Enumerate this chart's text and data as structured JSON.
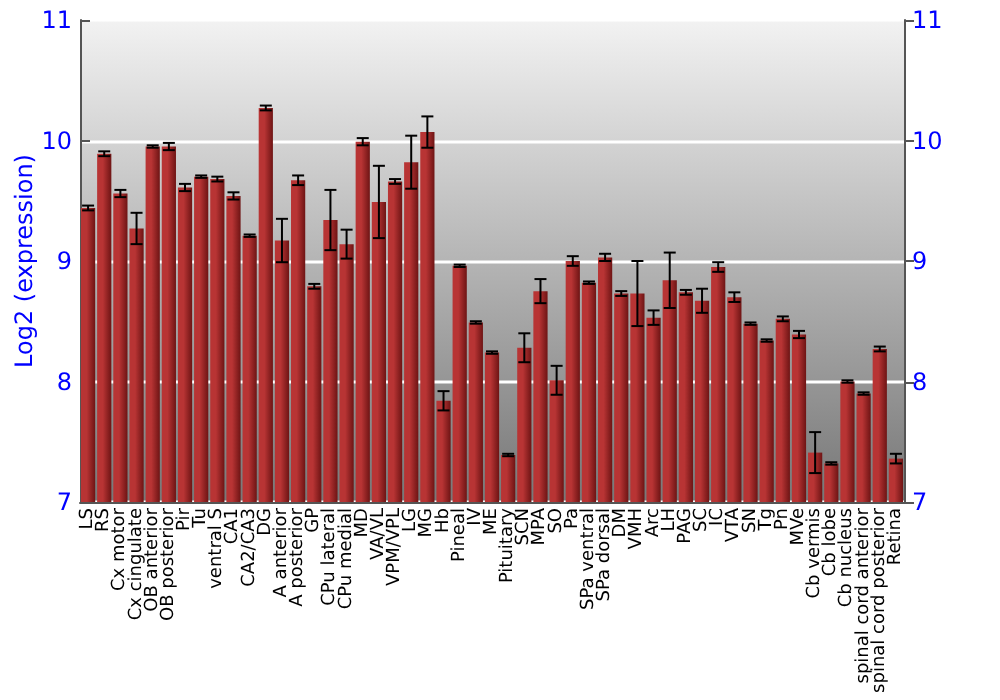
{
  "chart_data": {
    "type": "bar",
    "ylabel": "Log2 (expression)",
    "categories": [
      "LS",
      "RS",
      "Cx motor",
      "Cx cingulate",
      "OB anterior",
      "OB posterior",
      "Pir",
      "Tu",
      "ventral S",
      "CA1",
      "CA2/CA3",
      "DG",
      "A anterior",
      "A posterior",
      "GP",
      "CPu lateral",
      "CPu medial",
      "MD",
      "VA/VL",
      "VPM/VPL",
      "LG",
      "MG",
      "Hb",
      "Pineal",
      "IV",
      "ME",
      "Pituitary",
      "SCN",
      "MPA",
      "SO",
      "Pa",
      "SPa ventral",
      "SPa dorsal",
      "DM",
      "VMH",
      "Arc",
      "LH",
      "PAG",
      "SC",
      "IC",
      "VTA",
      "SN",
      "Tg",
      "Pn",
      "MVe",
      "Cb vermis",
      "Cb lobe",
      "Cb nucleus",
      "spinal cord anterior",
      "spinal cord posterior",
      "Retina"
    ],
    "values": [
      9.44,
      9.89,
      9.56,
      9.27,
      9.95,
      9.95,
      9.61,
      9.7,
      9.68,
      9.54,
      9.21,
      10.27,
      9.17,
      9.67,
      8.79,
      9.34,
      9.14,
      9.99,
      9.49,
      9.66,
      9.82,
      10.07,
      7.84,
      8.96,
      8.49,
      8.24,
      7.39,
      8.28,
      8.75,
      8.01,
      9.0,
      8.82,
      9.03,
      8.73,
      8.73,
      8.53,
      8.84,
      8.74,
      8.67,
      8.95,
      8.7,
      8.48,
      8.34,
      8.52,
      8.39,
      7.41,
      7.32,
      8.0,
      7.9,
      8.27,
      7.36
    ],
    "errors": [
      0.02,
      0.02,
      0.03,
      0.13,
      0.01,
      0.03,
      0.03,
      0.01,
      0.02,
      0.03,
      0.01,
      0.02,
      0.18,
      0.04,
      0.02,
      0.25,
      0.12,
      0.03,
      0.3,
      0.02,
      0.22,
      0.13,
      0.08,
      0.01,
      0.01,
      0.01,
      0.01,
      0.12,
      0.1,
      0.12,
      0.04,
      0.01,
      0.03,
      0.02,
      0.27,
      0.06,
      0.23,
      0.02,
      0.1,
      0.04,
      0.04,
      0.01,
      0.01,
      0.02,
      0.03,
      0.17,
      0.01,
      0.01,
      0.01,
      0.02,
      0.04
    ],
    "color": "#b83434",
    "ylim": [
      7,
      11
    ],
    "yticks": [
      7,
      8,
      9,
      10,
      11
    ],
    "y2lim": [
      7,
      11
    ],
    "y2ticks": [
      7,
      8,
      9,
      10,
      11
    ],
    "grid": "y"
  }
}
